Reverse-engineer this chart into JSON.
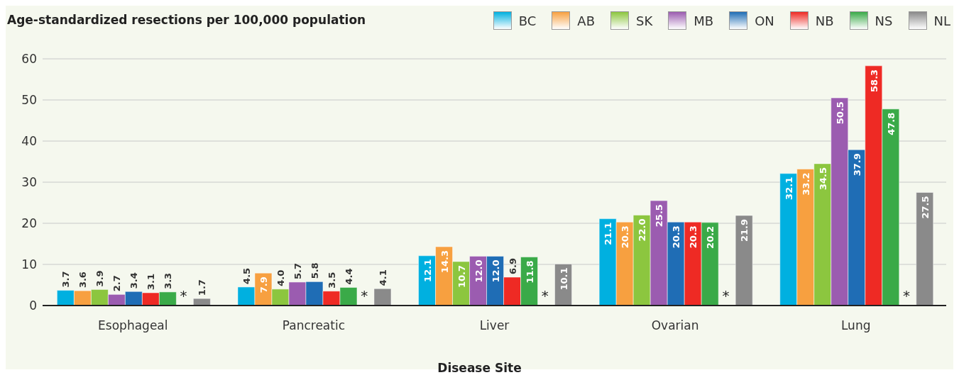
{
  "chart_data": {
    "type": "bar",
    "ylabel": "Age-standardized resections per 100,000 population",
    "xlabel": "Disease Site",
    "categories": [
      "Esophageal",
      "Pancreatic",
      "Liver",
      "Ovarian",
      "Lung"
    ],
    "series": [
      {
        "name": "BC",
        "color": "#00b0e0",
        "values": [
          3.7,
          4.5,
          12.1,
          21.1,
          32.1
        ],
        "value_labels": [
          "3.7",
          "4.5",
          "12.1",
          "21.1",
          "32.1"
        ]
      },
      {
        "name": "AB",
        "color": "#f7a040",
        "values": [
          3.6,
          7.9,
          14.3,
          20.3,
          33.2
        ],
        "value_labels": [
          "3.6",
          "7.9",
          "14.3",
          "20.3",
          "33.2"
        ]
      },
      {
        "name": "SK",
        "color": "#8cc63f",
        "values": [
          3.9,
          4.0,
          10.7,
          22.0,
          34.5
        ],
        "value_labels": [
          "3.9",
          "4.0",
          "10.7",
          "22.0",
          "34.5"
        ]
      },
      {
        "name": "MB",
        "color": "#9b5cb0",
        "values": [
          2.7,
          5.7,
          12.0,
          25.5,
          50.5
        ],
        "value_labels": [
          "2.7",
          "5.7",
          "12.0",
          "25.5",
          "50.5"
        ]
      },
      {
        "name": "ON",
        "color": "#1f6db5",
        "values": [
          3.4,
          5.8,
          12.0,
          20.3,
          37.9
        ],
        "value_labels": [
          "3.4",
          "5.8",
          "12.0",
          "20.3",
          "37.9"
        ]
      },
      {
        "name": "NB",
        "color": "#ee2a24",
        "values": [
          3.1,
          3.5,
          6.9,
          20.3,
          58.3
        ],
        "value_labels": [
          "3.1",
          "3.5",
          "6.9",
          "20.3",
          "58.3"
        ]
      },
      {
        "name": "NS",
        "color": "#3aaa48",
        "values": [
          3.3,
          4.4,
          11.8,
          20.2,
          47.8
        ],
        "value_labels": [
          "3.3",
          "4.4",
          "11.8",
          "20.2",
          "47.8"
        ]
      },
      {
        "values": [
          null,
          null,
          null,
          null,
          null
        ],
        "value_labels": [
          "*",
          "*",
          "*",
          "*",
          "*"
        ]
      },
      {
        "name": "NL",
        "color": "#8a8a8a",
        "values": [
          1.7,
          4.1,
          10.1,
          21.9,
          27.5
        ],
        "value_labels": [
          "1.7",
          "4.1",
          "10.1",
          "21.9",
          "27.5"
        ]
      }
    ],
    "ylim": [
      0,
      60
    ],
    "yticks": [
      0,
      10,
      20,
      30,
      40,
      50,
      60
    ],
    "grid": "y",
    "legend": "top right"
  }
}
